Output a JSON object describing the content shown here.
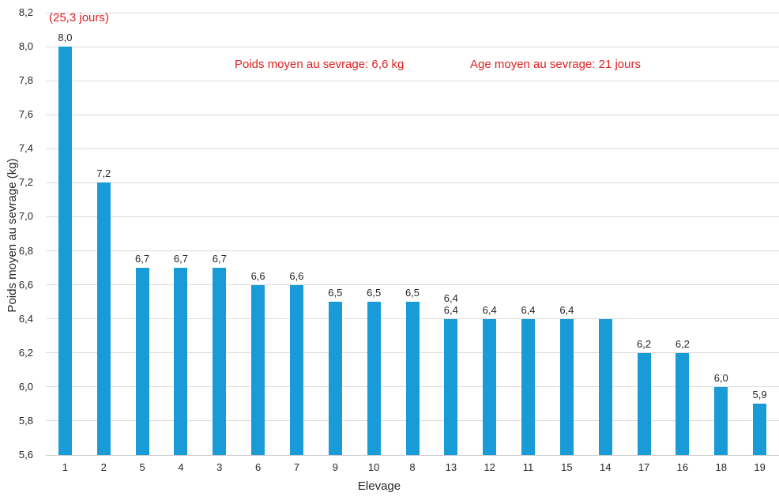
{
  "chart_data": {
    "type": "bar",
    "title": "",
    "xlabel": "Elevage",
    "ylabel": "Poids moyen au sevrage (kg)",
    "ylim": [
      5.6,
      8.2
    ],
    "ytick_step": 0.2,
    "yticks": [
      {
        "v": 8.2,
        "label": "8,2"
      },
      {
        "v": 8.0,
        "label": "8,0"
      },
      {
        "v": 7.8,
        "label": "7,8"
      },
      {
        "v": 7.6,
        "label": "7,6"
      },
      {
        "v": 7.4,
        "label": "7,4"
      },
      {
        "v": 7.2,
        "label": "7,2"
      },
      {
        "v": 7.0,
        "label": "7,0"
      },
      {
        "v": 6.8,
        "label": "6,8"
      },
      {
        "v": 6.6,
        "label": "6,6"
      },
      {
        "v": 6.4,
        "label": "6,4"
      },
      {
        "v": 6.2,
        "label": "6,2"
      },
      {
        "v": 6.0,
        "label": "6,0"
      },
      {
        "v": 5.8,
        "label": "5,8"
      },
      {
        "v": 5.6,
        "label": "5,6"
      }
    ],
    "categories": [
      "1",
      "2",
      "5",
      "4",
      "3",
      "6",
      "7",
      "9",
      "10",
      "8",
      "13",
      "12",
      "11",
      "15",
      "14",
      "17",
      "16",
      "18",
      "19"
    ],
    "values": [
      8.0,
      7.2,
      6.7,
      6.7,
      6.7,
      6.6,
      6.6,
      6.5,
      6.5,
      6.5,
      6.4,
      6.4,
      6.4,
      6.4,
      6.4,
      6.2,
      6.2,
      6.0,
      5.9
    ],
    "bar_labels": [
      [
        "8,0"
      ],
      [
        "7,2"
      ],
      [
        "6,7"
      ],
      [
        "6,7"
      ],
      [
        "6,7"
      ],
      [
        "6,6"
      ],
      [
        "6,6"
      ],
      [
        "6,5"
      ],
      [
        "6,5"
      ],
      [
        "6,5"
      ],
      [
        "6,4",
        "6,4"
      ],
      [
        "6,4"
      ],
      [
        "6,4"
      ],
      [
        "6,4"
      ],
      [],
      [
        "6,2"
      ],
      [
        "6,2"
      ],
      [
        "6,0"
      ],
      [
        "5,9"
      ]
    ],
    "grid": true,
    "legend": "none",
    "annotations": [
      {
        "text": "(25,3 jours)"
      },
      {
        "text": "Poids moyen au sevrage: 6,6 kg"
      },
      {
        "text": "Age moyen au sevrage: 21 jours"
      }
    ],
    "colors": {
      "bar": "#189bd6",
      "grid": "#dcdcdc",
      "axis_line": "#c9c9c9",
      "text": "#262626",
      "annotation": "#e02020"
    }
  }
}
